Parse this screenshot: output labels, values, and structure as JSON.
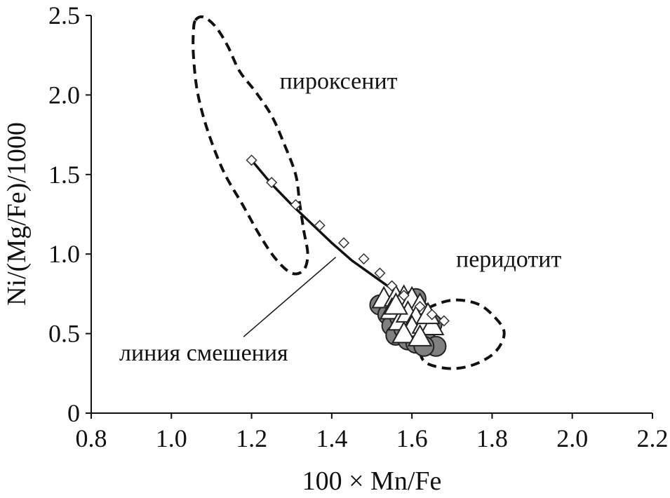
{
  "chart_data": {
    "type": "scatter",
    "title": "",
    "xlabel": "100 × Mn/Fe",
    "ylabel": "Ni/(Mg/Fe)/1000",
    "xlim": [
      0.8,
      2.2
    ],
    "ylim": [
      0,
      2.5
    ],
    "x_ticks": [
      "0.8",
      "1.0",
      "1.2",
      "1.4",
      "1.6",
      "1.8",
      "2.0",
      "2.2"
    ],
    "y_ticks": [
      "0",
      "0.5",
      "1.0",
      "1.5",
      "2.0",
      "2.5"
    ],
    "grid": false,
    "legend": "none",
    "annotations": [
      {
        "text": "пироксенит",
        "x": 1.27,
        "y": 2.04
      },
      {
        "text": "перидотит",
        "x": 1.71,
        "y": 0.92
      },
      {
        "text": "линия смешения",
        "x": 0.87,
        "y": 0.33
      }
    ],
    "mixing_line": {
      "label": "линия смешения",
      "x": [
        1.2,
        1.25,
        1.3,
        1.35,
        1.4,
        1.45,
        1.5,
        1.55,
        1.6,
        1.65,
        1.68
      ],
      "y": [
        1.59,
        1.44,
        1.31,
        1.19,
        1.07,
        0.96,
        0.87,
        0.78,
        0.7,
        0.62,
        0.58
      ],
      "markers": [
        {
          "x": 1.2,
          "y": 1.59
        },
        {
          "x": 1.25,
          "y": 1.45
        },
        {
          "x": 1.31,
          "y": 1.31
        },
        {
          "x": 1.37,
          "y": 1.18
        },
        {
          "x": 1.43,
          "y": 1.07
        },
        {
          "x": 1.48,
          "y": 0.97
        },
        {
          "x": 1.52,
          "y": 0.88
        },
        {
          "x": 1.55,
          "y": 0.8
        },
        {
          "x": 1.58,
          "y": 0.74
        },
        {
          "x": 1.62,
          "y": 0.67
        },
        {
          "x": 1.65,
          "y": 0.62
        },
        {
          "x": 1.68,
          "y": 0.58
        }
      ],
      "leader_from": {
        "x": 1.41,
        "y": 0.98
      },
      "leader_to": {
        "x": 1.18,
        "y": 0.48
      }
    },
    "fields": [
      {
        "label": "пироксенит",
        "points": [
          [
            1.06,
            2.47
          ],
          [
            1.08,
            2.49
          ],
          [
            1.11,
            2.43
          ],
          [
            1.14,
            2.31
          ],
          [
            1.17,
            2.15
          ],
          [
            1.21,
            2.02
          ],
          [
            1.25,
            1.87
          ],
          [
            1.28,
            1.7
          ],
          [
            1.31,
            1.5
          ],
          [
            1.32,
            1.32
          ],
          [
            1.33,
            1.15
          ],
          [
            1.34,
            1.0
          ],
          [
            1.33,
            0.9
          ],
          [
            1.3,
            0.88
          ],
          [
            1.26,
            0.97
          ],
          [
            1.22,
            1.12
          ],
          [
            1.18,
            1.3
          ],
          [
            1.13,
            1.52
          ],
          [
            1.09,
            1.78
          ],
          [
            1.065,
            2.02
          ],
          [
            1.055,
            2.25
          ],
          [
            1.055,
            2.4
          ],
          [
            1.06,
            2.47
          ]
        ]
      },
      {
        "label": "перидотит",
        "points": [
          [
            1.64,
            0.66
          ],
          [
            1.7,
            0.71
          ],
          [
            1.76,
            0.69
          ],
          [
            1.8,
            0.62
          ],
          [
            1.83,
            0.51
          ],
          [
            1.81,
            0.39
          ],
          [
            1.76,
            0.31
          ],
          [
            1.7,
            0.28
          ],
          [
            1.64,
            0.31
          ],
          [
            1.62,
            0.38
          ],
          [
            1.62,
            0.5
          ],
          [
            1.63,
            0.61
          ],
          [
            1.64,
            0.66
          ]
        ]
      }
    ],
    "series": [
      {
        "marker": "circle",
        "fill": "#808080",
        "points": [
          {
            "x": 1.52,
            "y": 0.68
          },
          {
            "x": 1.54,
            "y": 0.62
          },
          {
            "x": 1.55,
            "y": 0.55
          },
          {
            "x": 1.56,
            "y": 0.49
          },
          {
            "x": 1.57,
            "y": 0.6
          },
          {
            "x": 1.58,
            "y": 0.53
          },
          {
            "x": 1.59,
            "y": 0.46
          },
          {
            "x": 1.6,
            "y": 0.58
          },
          {
            "x": 1.61,
            "y": 0.72
          },
          {
            "x": 1.62,
            "y": 0.64
          },
          {
            "x": 1.63,
            "y": 0.5
          },
          {
            "x": 1.64,
            "y": 0.44
          },
          {
            "x": 1.65,
            "y": 0.56
          },
          {
            "x": 1.66,
            "y": 0.42
          },
          {
            "x": 1.58,
            "y": 0.66
          },
          {
            "x": 1.61,
            "y": 0.44
          },
          {
            "x": 1.63,
            "y": 0.42
          },
          {
            "x": 1.57,
            "y": 0.7
          }
        ]
      },
      {
        "marker": "triangle",
        "fill": "#ffffff",
        "points": [
          {
            "x": 1.53,
            "y": 0.72
          },
          {
            "x": 1.56,
            "y": 0.73
          },
          {
            "x": 1.58,
            "y": 0.73
          },
          {
            "x": 1.6,
            "y": 0.72
          },
          {
            "x": 1.62,
            "y": 0.68
          },
          {
            "x": 1.55,
            "y": 0.65
          },
          {
            "x": 1.57,
            "y": 0.58
          },
          {
            "x": 1.59,
            "y": 0.63
          },
          {
            "x": 1.61,
            "y": 0.6
          },
          {
            "x": 1.6,
            "y": 0.54
          },
          {
            "x": 1.63,
            "y": 0.56
          },
          {
            "x": 1.65,
            "y": 0.55
          },
          {
            "x": 1.58,
            "y": 0.5
          },
          {
            "x": 1.62,
            "y": 0.48
          },
          {
            "x": 1.56,
            "y": 0.68
          },
          {
            "x": 1.64,
            "y": 0.62
          }
        ]
      }
    ]
  }
}
